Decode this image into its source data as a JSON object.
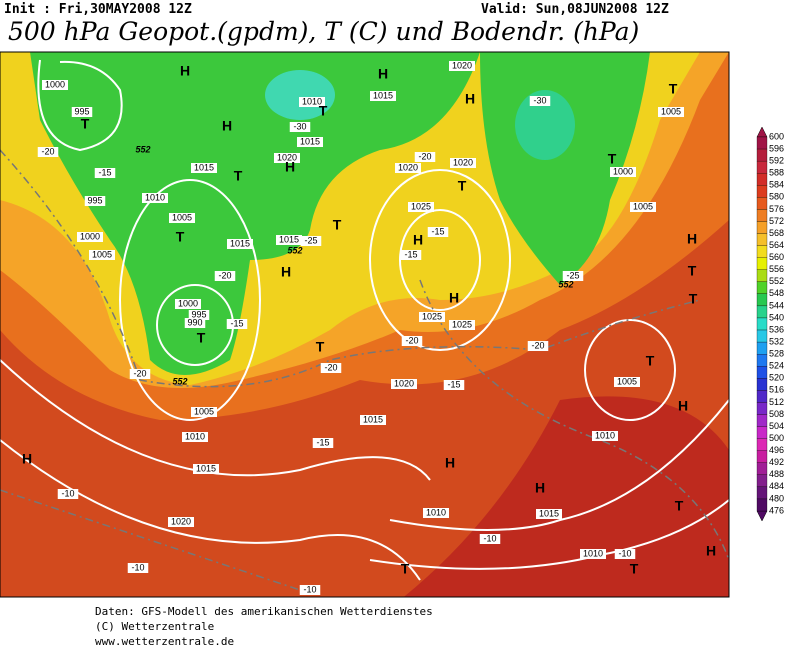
{
  "header": {
    "init": "Init : Fri,30MAY2008 12Z",
    "valid": "Valid: Sun,08JUN2008 12Z",
    "title": "500 hPa Geopot.(gpdm), T (C) und Bodendr. (hPa)"
  },
  "colorbar": {
    "levels": [
      600,
      596,
      592,
      588,
      584,
      580,
      576,
      572,
      568,
      564,
      560,
      556,
      552,
      548,
      544,
      540,
      536,
      532,
      528,
      524,
      520,
      516,
      512,
      508,
      504,
      500,
      496,
      492,
      488,
      484,
      480,
      476
    ],
    "colors": [
      "#a01446",
      "#b41e3c",
      "#c8283c",
      "#d22d28",
      "#dc3c1e",
      "#e65a1e",
      "#ee7d23",
      "#f5a028",
      "#f5bf2a",
      "#f2dc1e",
      "#e6f000",
      "#aadc14",
      "#50d228",
      "#28c850",
      "#28d28c",
      "#28dcc8",
      "#28c8e6",
      "#1ea0f0",
      "#1e78f0",
      "#1e50e6",
      "#2832d2",
      "#5028c8",
      "#7828c8",
      "#a028c8",
      "#c828c8",
      "#dc28b4",
      "#c81ea0",
      "#a01e96",
      "#821e8c",
      "#641478",
      "#500a64"
    ]
  },
  "map": {
    "labels": [
      "H",
      "T",
      "1000",
      "995",
      "H",
      "1010",
      "T",
      "1015",
      "-30",
      "1020",
      "H",
      "1015",
      "T",
      "H",
      "1015",
      "1020",
      "H",
      "-30",
      "T",
      "1005",
      "T",
      "1000",
      "1005",
      "-20",
      "-15",
      "995",
      "1010",
      "1005",
      "T",
      "1000",
      "1005",
      "1015",
      "1015",
      "-25",
      "H",
      "T",
      "-20",
      "1020",
      "1020",
      "T",
      "1025",
      "H",
      "-15",
      "-15",
      "H",
      "1025",
      "1025",
      "-20",
      "1000",
      "995",
      "990",
      "T",
      "-15",
      "T",
      "-20",
      "-20",
      "-20",
      "H",
      "T",
      "T",
      "-25",
      "T",
      "1005",
      "1020",
      "-15",
      "-20",
      "1005",
      "H",
      "1010",
      "1010",
      "1015",
      "-15",
      "H",
      "H",
      "1015",
      "H",
      "-10",
      "1010",
      "1015",
      "T",
      "1020",
      "-10",
      "1010",
      "-10",
      "H",
      "-10",
      "T",
      "T",
      "-10",
      "552",
      "552",
      "552",
      "552"
    ]
  },
  "footer": {
    "lines": [
      "Daten: GFS-Modell des amerikanischen Wetterdienstes",
      "(C) Wetterzentrale",
      "www.wetterzentrale.de"
    ]
  }
}
